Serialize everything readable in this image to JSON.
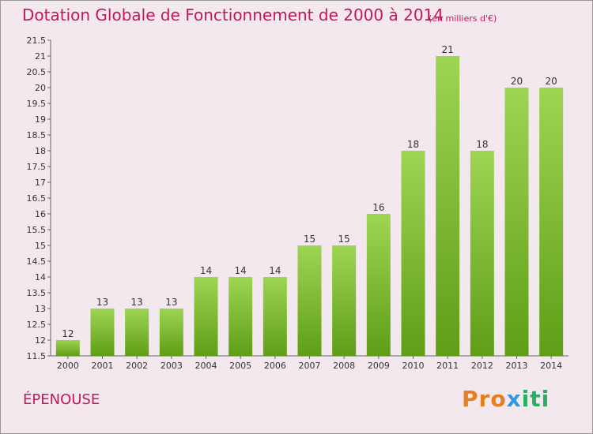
{
  "title": "Dotation Globale de Fonctionnement de 2000 à 2014",
  "subtitle": "(en milliers d'€)",
  "commune": "ÉPENOUSE",
  "logo": {
    "text": "Proxiti",
    "parts": [
      "Pro",
      "x",
      "iti"
    ]
  },
  "colors": {
    "bar_top": "#9ed553",
    "bar_bottom": "#5f9e16",
    "text_accent": "#c2185b",
    "background": "#f2e8ee"
  },
  "chart_data": {
    "type": "bar",
    "categories": [
      "2000",
      "2001",
      "2002",
      "2003",
      "2004",
      "2005",
      "2006",
      "2007",
      "2008",
      "2009",
      "2010",
      "2011",
      "2012",
      "2013",
      "2014"
    ],
    "values": [
      12,
      13,
      13,
      13,
      14,
      14,
      14,
      15,
      15,
      16,
      18,
      21,
      18,
      20,
      20
    ],
    "data_labels": [
      "12",
      "13",
      "13",
      "13",
      "14",
      "14",
      "14",
      "15",
      "15",
      "16",
      "18",
      "21",
      "18",
      "20",
      "20"
    ],
    "ylim": [
      11.5,
      21.5
    ],
    "yticks": [
      11.5,
      12,
      12.5,
      13,
      13.5,
      14,
      14.5,
      15,
      15.5,
      16,
      16.5,
      17,
      17.5,
      18,
      18.5,
      19,
      19.5,
      20,
      20.5,
      21,
      21.5
    ],
    "ytick_labels": [
      "11.5",
      "12",
      "12.5",
      "13",
      "13.5",
      "14",
      "14.5",
      "15",
      "15.5",
      "16",
      "16.5",
      "17",
      "17.5",
      "18",
      "18.5",
      "19",
      "19.5",
      "20",
      "20.5",
      "21",
      "21.5"
    ],
    "grid": false,
    "legend": "none"
  }
}
